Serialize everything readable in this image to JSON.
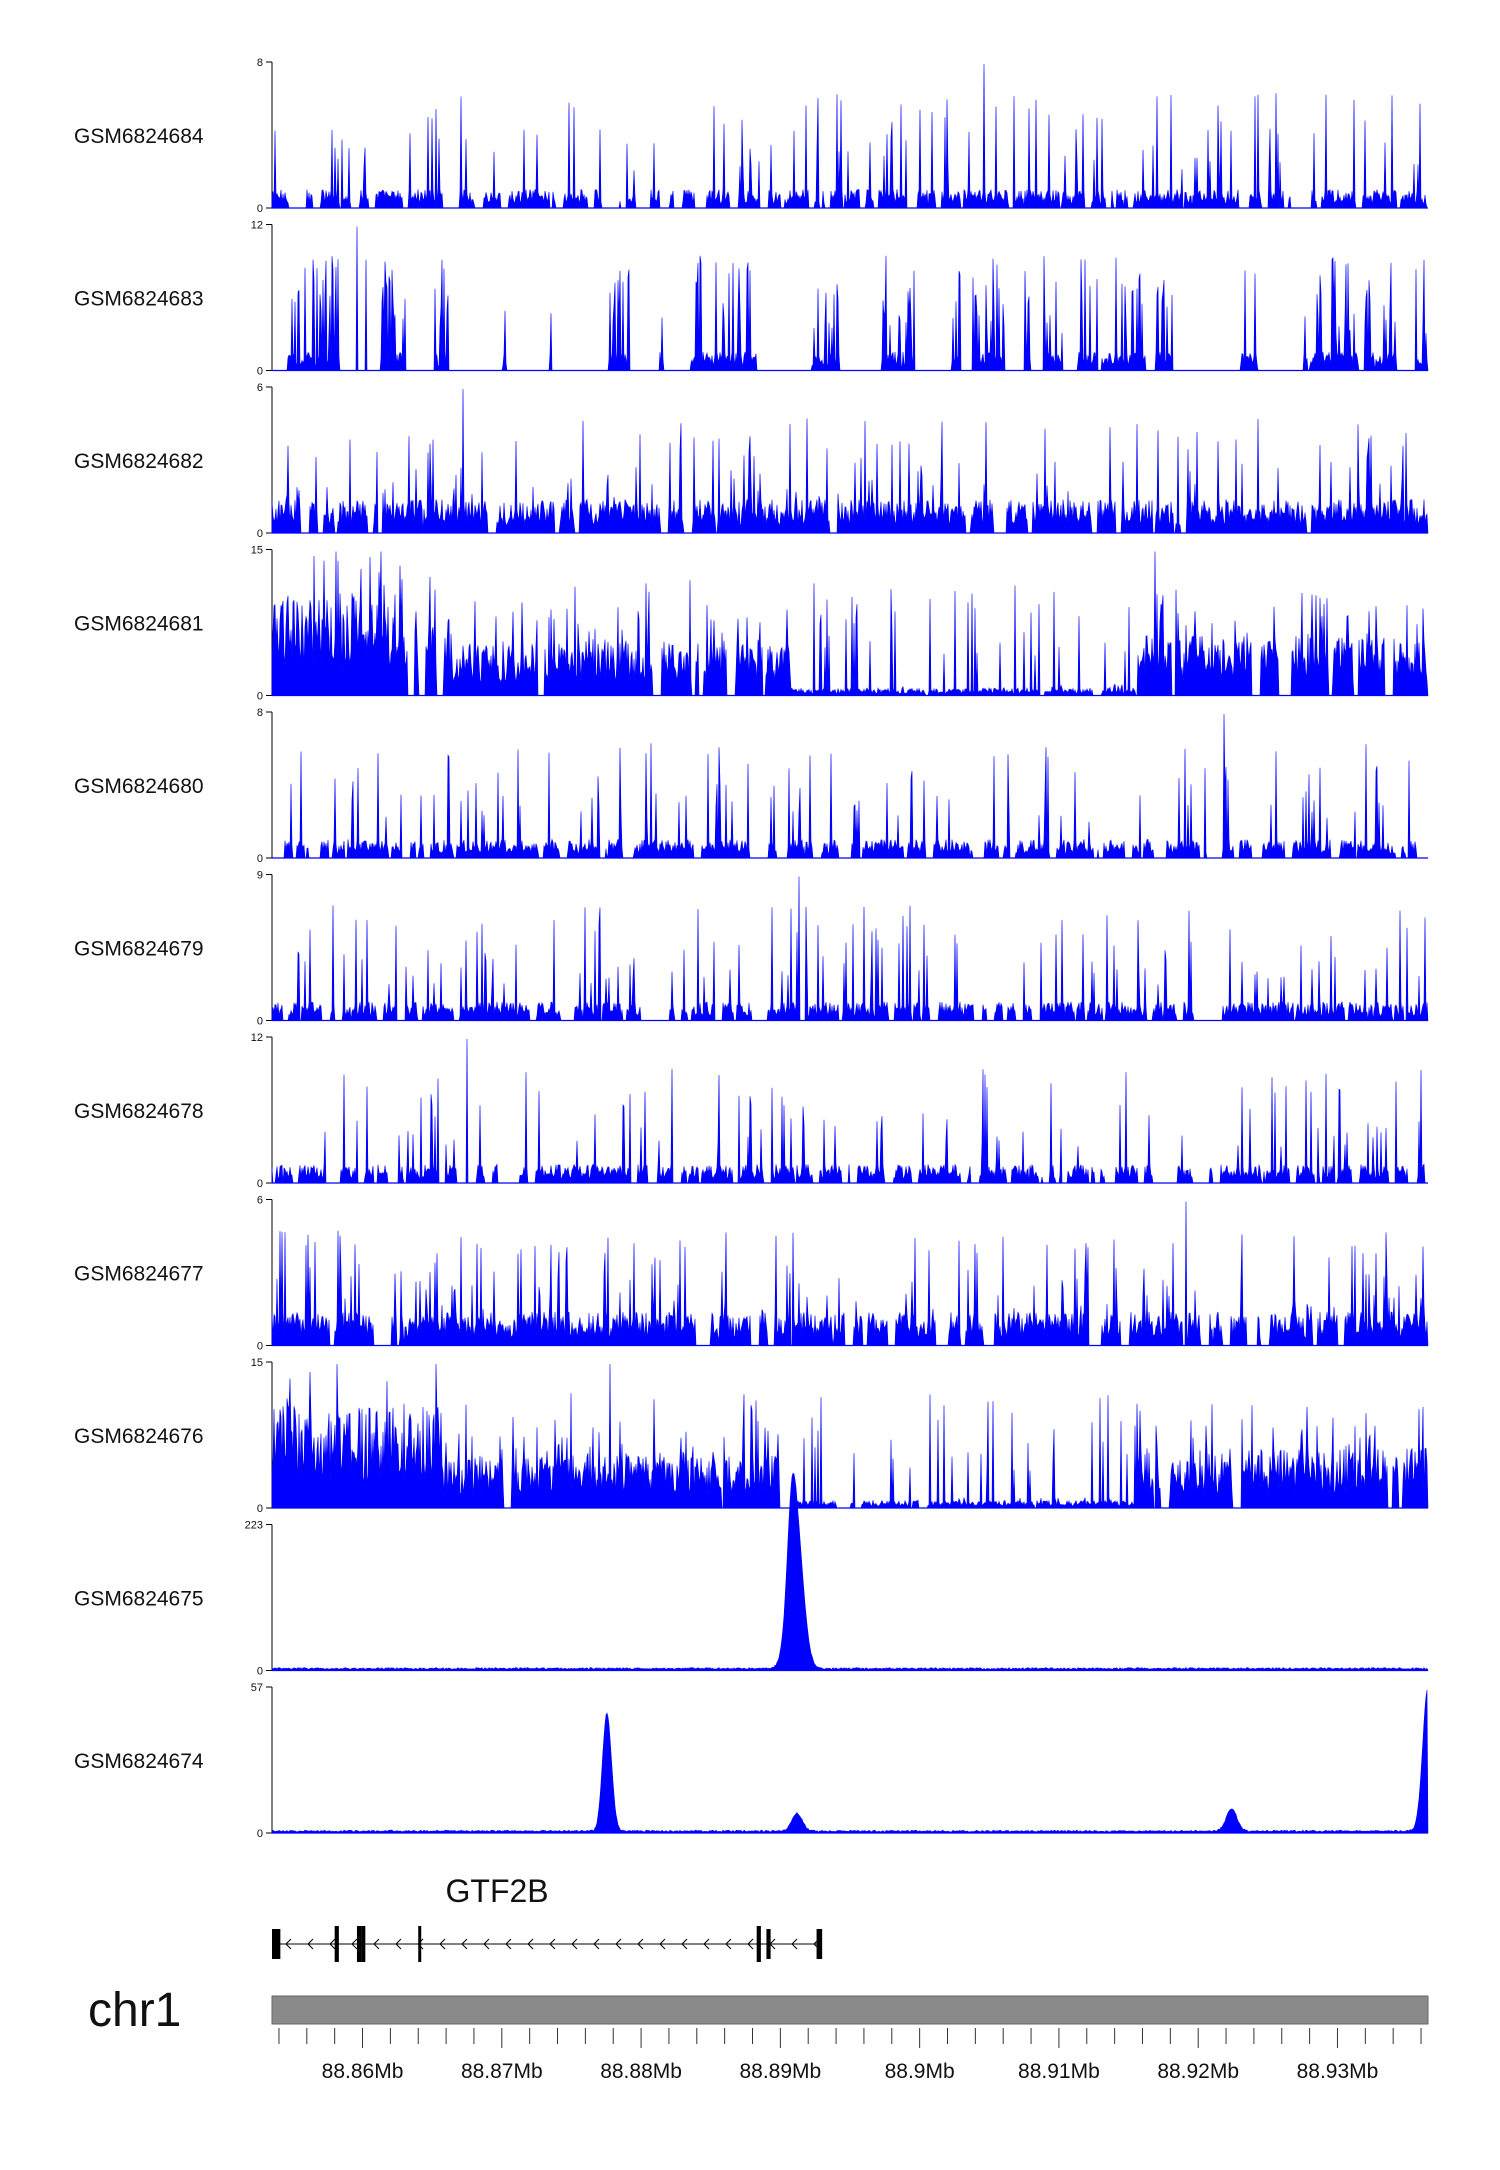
{
  "chart_data": {
    "type": "area",
    "series_color": "#0000ff",
    "x_domain": [
      88.8535,
      88.9365
    ],
    "x_unit": "Mb",
    "tracks": [
      {
        "name": "GSM6824684",
        "ymax": "8",
        "ymin": "0",
        "max": 8,
        "profile": "sparse"
      },
      {
        "name": "GSM6824683",
        "ymax": "12",
        "ymin": "0",
        "max": 12,
        "profile": "very-sparse"
      },
      {
        "name": "GSM6824682",
        "ymax": "6",
        "ymin": "0",
        "max": 6,
        "profile": "dense"
      },
      {
        "name": "GSM6824681",
        "ymax": "15",
        "ymin": "0",
        "max": 15,
        "profile": "domain"
      },
      {
        "name": "GSM6824680",
        "ymax": "8",
        "ymin": "0",
        "max": 8,
        "profile": "sparse"
      },
      {
        "name": "GSM6824679",
        "ymax": "9",
        "ymin": "0",
        "max": 9,
        "profile": "sparse"
      },
      {
        "name": "GSM6824678",
        "ymax": "12",
        "ymin": "0",
        "max": 12,
        "profile": "sparse"
      },
      {
        "name": "GSM6824677",
        "ymax": "6",
        "ymin": "0",
        "max": 6,
        "profile": "dense"
      },
      {
        "name": "GSM6824676",
        "ymax": "15",
        "ymin": "0",
        "max": 15,
        "profile": "domain"
      },
      {
        "name": "GSM6824675",
        "ymax": "223",
        "ymin": "0",
        "max": 223,
        "profile": "peaks",
        "peaks": [
          {
            "x": 88.8911,
            "h": 223,
            "w": 0.00035
          },
          {
            "x": 88.8908,
            "h": 100,
            "w": 0.0002
          }
        ]
      },
      {
        "name": "GSM6824674",
        "ymax": "57",
        "ymin": "0",
        "max": 57,
        "profile": "peaks",
        "peaks": [
          {
            "x": 88.8775,
            "h": 40,
            "w": 0.0002
          },
          {
            "x": 88.8778,
            "h": 10,
            "w": 0.0002
          },
          {
            "x": 88.8912,
            "h": 7,
            "w": 0.00025
          },
          {
            "x": 88.9224,
            "h": 9,
            "w": 0.00025
          },
          {
            "x": 88.9365,
            "h": 57,
            "w": 0.00025
          }
        ]
      }
    ],
    "gene": {
      "name": "GTF2B",
      "start": 88.8535,
      "end": 88.893,
      "strand": "-",
      "exons": [
        {
          "start": 88.8535,
          "end": 88.8541
        },
        {
          "start": 88.858,
          "end": 88.8583
        },
        {
          "start": 88.8596,
          "end": 88.8599
        },
        {
          "start": 88.8599,
          "end": 88.8602
        },
        {
          "start": 88.864,
          "end": 88.8642
        },
        {
          "start": 88.8883,
          "end": 88.8886
        },
        {
          "start": 88.889,
          "end": 88.8893
        },
        {
          "start": 88.8926,
          "end": 88.893
        }
      ]
    },
    "chromosome": "chr1",
    "x_ticks": [
      {
        "value": 88.86,
        "label": "88.86Mb"
      },
      {
        "value": 88.87,
        "label": "88.87Mb"
      },
      {
        "value": 88.88,
        "label": "88.88Mb"
      },
      {
        "value": 88.89,
        "label": "88.89Mb"
      },
      {
        "value": 88.9,
        "label": "88.9Mb"
      },
      {
        "value": 88.91,
        "label": "88.91Mb"
      },
      {
        "value": 88.92,
        "label": "88.92Mb"
      },
      {
        "value": 88.93,
        "label": "88.93Mb"
      }
    ],
    "minor_tick_step": 0.002
  }
}
